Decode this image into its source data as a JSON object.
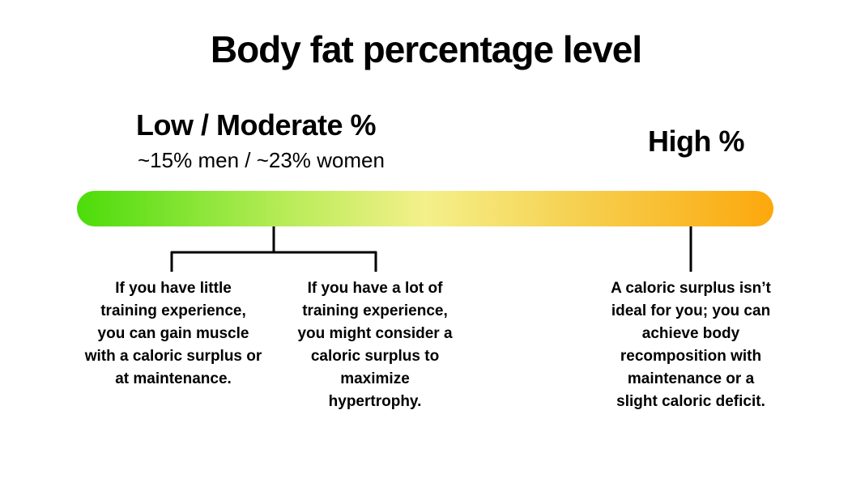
{
  "title": "Body fat percentage level",
  "scale": {
    "low": {
      "label": "Low / Moderate %",
      "sublabel": "~15% men / ~23% women"
    },
    "high": {
      "label": "High %"
    },
    "colors": {
      "start": "#4cdc0a",
      "mid": "#f4f08a",
      "end": "#fca80c"
    }
  },
  "notes": [
    "If you have little\ntraining experience,\nyou can gain muscle\nwith a caloric surplus or\nat maintenance.",
    "If you have a lot of\ntraining experience,\nyou might consider a\ncaloric surplus to\nmaximize\nhypertrophy.",
    "A caloric surplus isn’t\nideal for you; you can\nachieve body\nrecomposition with\nmaintenance or a\nslight caloric deficit."
  ]
}
